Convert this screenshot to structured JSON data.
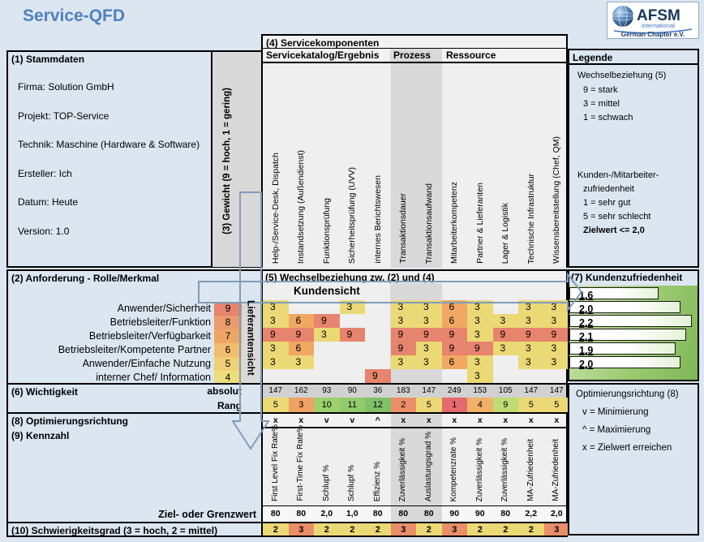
{
  "title": "Service-QFD",
  "logo": {
    "name": "AFSM",
    "sub": "international",
    "chapter": "German Chapter e.V."
  },
  "stammdaten": {
    "header": "(1) Stammdaten",
    "items": [
      "Firma: Solution GmbH",
      "Projekt: TOP-Service",
      "Technik: Maschine (Hardware & Software)",
      "Ersteller: Ich",
      "Datum: Heute",
      "Version: 1.0"
    ]
  },
  "gewicht_label": "(3) Gewicht (9 = hoch, 1 = gering)",
  "servicekomponenten": {
    "header": "(4) Servicekomponenten",
    "groups": [
      "Servicekatalog/Ergebnis",
      "Prozess",
      "Ressource"
    ],
    "columns": [
      "Help-/Service-Desk, Dispatch",
      "Instandsetzung (Außendienst)",
      "Funktionsprüfung",
      "Sicherheitsprüfung (UVV)",
      "internes Berichtswesen",
      "Transaktionsdauer",
      "Transaktionsaufwand",
      "Mitarbeiterkompetenz",
      "Partner & Lieferanten",
      "Lager & Logistik",
      "Technische Infrastruktur",
      "Wissensbereitstellung (Chef, QM)"
    ]
  },
  "legende": {
    "header": "Legende",
    "lines": [
      {
        "text": "Wechselbeziehung (5)",
        "indent": false,
        "bold": false
      },
      {
        "text": "9 = stark",
        "indent": true,
        "bold": false
      },
      {
        "text": "3 = mittel",
        "indent": true,
        "bold": false
      },
      {
        "text": "1 = schwach",
        "indent": true,
        "bold": false
      },
      {
        "text": "Kunden-/Mitarbeiter-",
        "indent": false,
        "bold": false
      },
      {
        "text": "zufriedenheit",
        "indent": true,
        "bold": false
      },
      {
        "text": "1 = sehr gut",
        "indent": true,
        "bold": false
      },
      {
        "text": "5 = sehr schlecht",
        "indent": true,
        "bold": false
      },
      {
        "text": "Zielwert <= 2,0",
        "indent": true,
        "bold": true
      }
    ]
  },
  "anforderung": {
    "header": "(2) Anforderung - Rolle/Merkmal"
  },
  "matrix": {
    "header": "(5) Wechselbeziehung zw. (2) und (4)",
    "kundensicht": "Kundensicht",
    "lieferantensicht": "Lieferantensicht",
    "rows": [
      {
        "label": "Anwender/Sicherheit",
        "gewicht": "9",
        "values": [
          "3",
          "",
          "",
          "3",
          "",
          "3",
          "3",
          "6",
          "3",
          "",
          "3",
          "3"
        ]
      },
      {
        "label": "Betriebsleiter/Funktion",
        "gewicht": "8",
        "values": [
          "3",
          "6",
          "9",
          "",
          "",
          "3",
          "3",
          "6",
          "3",
          "3",
          "3",
          "3"
        ]
      },
      {
        "label": "Betriebsleiter/Verfügbarkeit",
        "gewicht": "7",
        "values": [
          "9",
          "9",
          "3",
          "9",
          "",
          "9",
          "9",
          "9",
          "3",
          "9",
          "9",
          "9"
        ]
      },
      {
        "label": "Betriebsleiter/Kompetente Partner",
        "gewicht": "6",
        "values": [
          "3",
          "6",
          "",
          "",
          "",
          "9",
          "3",
          "9",
          "9",
          "3",
          "3",
          "3"
        ]
      },
      {
        "label": "Anwender/Einfache Nutzung",
        "gewicht": "5",
        "values": [
          "3",
          "3",
          "",
          "",
          "",
          "3",
          "3",
          "6",
          "3",
          "",
          "3",
          "3"
        ]
      },
      {
        "label": "interner Chef/ Information",
        "gewicht": "4",
        "values": [
          "",
          "",
          "",
          "",
          "9",
          "",
          "",
          "",
          "3",
          "",
          "",
          ""
        ]
      }
    ]
  },
  "wichtigkeit": {
    "header": "(6) Wichtigkeit",
    "absolut_label": "absolut",
    "rang_label": "Rang",
    "absolut": [
      "147",
      "162",
      "93",
      "90",
      "36",
      "183",
      "147",
      "249",
      "153",
      "105",
      "147",
      "147"
    ],
    "rang": [
      "5",
      "3",
      "10",
      "11",
      "12",
      "2",
      "5",
      "1",
      "4",
      "9",
      "5",
      "5"
    ]
  },
  "optimierung": {
    "header": "(8) Optimierungsrichtung",
    "values": [
      "x",
      "x",
      "v",
      "v",
      "^",
      "x",
      "x",
      "x",
      "x",
      "x",
      "x",
      "x"
    ],
    "legend_title": "Optimierungsrichtung (8)",
    "legend_lines": [
      "v = Minimierung",
      "^ = Maximierung",
      "x = Zielwert erreichen"
    ]
  },
  "kennzahl": {
    "header": "(9) Kennzahl",
    "labels": [
      "First Level Fix Rate%",
      "First-Time Fix Rate%",
      "Schlupf %",
      "Schlupf %",
      "Effizienz %",
      "Zuverlässigkeit %",
      "Auslastungsgrad %",
      "Kompetenzrate %",
      "Zuverlässigkeit %",
      "Zuverlässigkeit %",
      "MA-Zufriedenheit",
      "MA-Zufriedenheit"
    ],
    "ziel_label": "Ziel- oder Grenzwert",
    "ziel": [
      "80",
      "80",
      "2,0",
      "1,0",
      "80",
      "80",
      "80",
      "90",
      "90",
      "80",
      "2,2",
      "2,0"
    ]
  },
  "schwierigkeit": {
    "header": "(10) Schwierigkeitsgrad (3 = hoch, 2 = mittel)",
    "values": [
      "2",
      "3",
      "2",
      "2",
      "2",
      "3",
      "2",
      "3",
      "2",
      "2",
      "2",
      "3"
    ]
  },
  "kundenzufriedenheit": {
    "header": "(7) Kundenzufriedenheit",
    "labels": [
      "1,6",
      "2,0",
      "2,2",
      "2,1",
      "1,9",
      "2,0"
    ],
    "numeric": [
      1.6,
      2.0,
      2.2,
      2.1,
      1.9,
      2.0
    ],
    "scale_max": 2.3
  },
  "chart_data": {
    "type": "bar",
    "title": "(7) Kundenzufriedenheit",
    "categories": [
      "Anwender/Sicherheit",
      "Betriebsleiter/Funktion",
      "Betriebsleiter/Verfügbarkeit",
      "Betriebsleiter/Kompetente Partner",
      "Anwender/Einfache Nutzung",
      "interner Chef/ Information"
    ],
    "values": [
      1.6,
      2.0,
      2.2,
      2.1,
      1.9,
      2.0
    ],
    "xlabel": "",
    "ylabel": "",
    "xlim": [
      0,
      2.3
    ]
  },
  "colors": {
    "cell": {
      "3": "#EBD976",
      "6": "#F0A862",
      "9": "#E7846D"
    },
    "gewicht": {
      "9": "#E7846D",
      "8": "#EC9B6F",
      "7": "#EEA763",
      "6": "#F1BD71",
      "5": "#F0D077",
      "4": "#ECDE7C"
    },
    "rang": {
      "1": "#E56A6F",
      "2": "#EB8E68",
      "3": "#EFA263",
      "4": "#F1B168",
      "5": "#EBD976",
      "9": "#BFDB74",
      "10": "#9ED06E",
      "11": "#92CB6B",
      "12": "#80C168"
    },
    "schwierigkeit": {
      "2": "#EBD976",
      "3": "#EA8E68"
    },
    "band_gray": "#D9D9D9",
    "matrix_gray": "#EFEFEF",
    "accent_blue": "#4F81BD",
    "arrow_blue": "#7F9DB9"
  }
}
